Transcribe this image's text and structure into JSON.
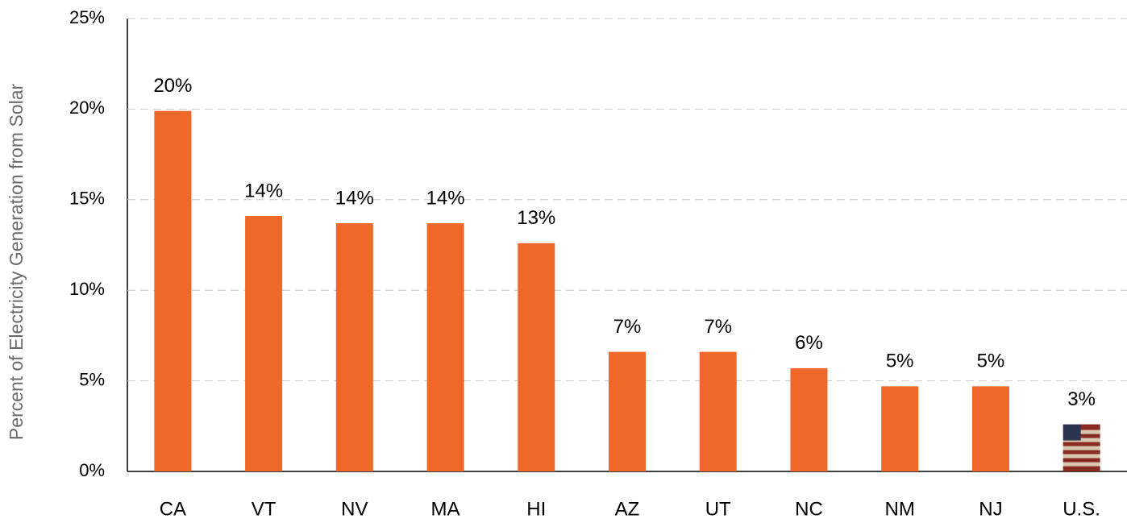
{
  "chart_data": {
    "type": "bar",
    "y_axis_label": "Percent of Electricity Generation from Solar",
    "categories": [
      "CA",
      "VT",
      "NV",
      "MA",
      "HI",
      "AZ",
      "UT",
      "NC",
      "NM",
      "NJ",
      "U.S."
    ],
    "values": [
      19.9,
      14.1,
      13.7,
      13.7,
      12.6,
      6.6,
      6.6,
      5.7,
      4.7,
      4.7,
      2.6
    ],
    "value_labels": [
      "20%",
      "14%",
      "14%",
      "14%",
      "13%",
      "7%",
      "7%",
      "6%",
      "5%",
      "5%",
      "3%"
    ],
    "color": "#f0672a",
    "ylim": [
      0,
      25
    ],
    "yticks": [
      {
        "value": 0,
        "label": "0%"
      },
      {
        "value": 5,
        "label": "5%"
      },
      {
        "value": 10,
        "label": "10%"
      },
      {
        "value": 15,
        "label": "15%"
      },
      {
        "value": 20,
        "label": "20%"
      },
      {
        "value": 25,
        "label": "25%"
      }
    ],
    "grid": true
  }
}
